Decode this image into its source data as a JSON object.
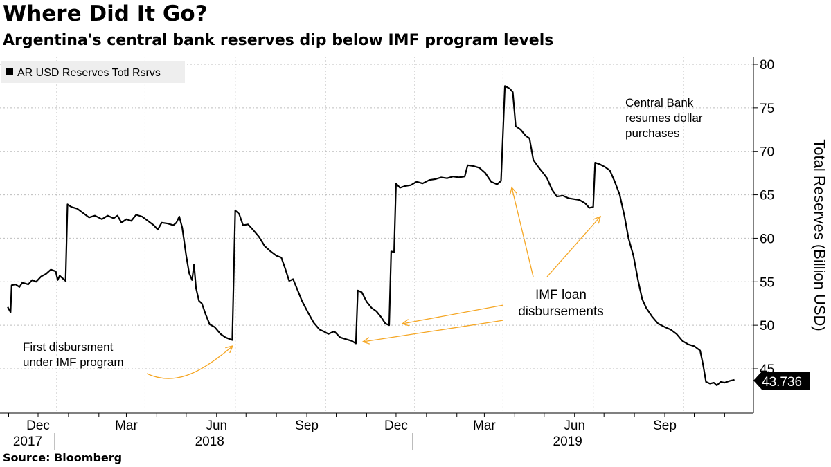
{
  "title": "Where Did It Go?",
  "subtitle": "Argentina's central bank reserves dip below IMF program levels",
  "source": "Source:  Bloomberg",
  "colors": {
    "line": "#000000",
    "annotation": "#f5a623",
    "grid": "#bdbdbd",
    "legend_bg": "#eeeeee"
  },
  "chart_data": {
    "type": "line",
    "x_type": "date",
    "ylabel": "Total Reserves (Billion USD)",
    "ylim": [
      40,
      80
    ],
    "yticks": [
      45,
      50,
      55,
      60,
      65,
      70,
      75,
      80
    ],
    "y_axis_position": "right",
    "grid": true,
    "legend": {
      "position": "top-left",
      "entries": [
        "AR USD Reserves Totl Rsrvs"
      ]
    },
    "x_tick_labels": [
      {
        "label": "Dec",
        "date": "2017-12-01"
      },
      {
        "label": "Mar",
        "date": "2018-03-01"
      },
      {
        "label": "Jun",
        "date": "2018-06-01"
      },
      {
        "label": "Sep",
        "date": "2018-09-01"
      },
      {
        "label": "Dec",
        "date": "2018-12-01"
      },
      {
        "label": "Mar",
        "date": "2019-03-01"
      },
      {
        "label": "Jun",
        "date": "2019-06-01"
      },
      {
        "label": "Sep",
        "date": "2019-09-01"
      }
    ],
    "year_labels": [
      {
        "label": "2017",
        "date": "2017-12-01"
      },
      {
        "label": "2018",
        "date": "2018-06-01"
      },
      {
        "label": "2019",
        "date": "2019-06-01"
      }
    ],
    "last_value_label": "43.736",
    "series": [
      {
        "name": "AR USD Reserves Totl Rsrvs",
        "points": [
          [
            "2017-10-31",
            52.1
          ],
          [
            "2017-11-03",
            51.5
          ],
          [
            "2017-11-04",
            54.6
          ],
          [
            "2017-11-08",
            54.7
          ],
          [
            "2017-11-12",
            54.4
          ],
          [
            "2017-11-15",
            54.9
          ],
          [
            "2017-11-21",
            54.7
          ],
          [
            "2017-11-25",
            55.2
          ],
          [
            "2017-11-29",
            55.0
          ],
          [
            "2017-12-04",
            55.6
          ],
          [
            "2017-12-09",
            55.9
          ],
          [
            "2017-12-14",
            56.4
          ],
          [
            "2017-12-19",
            56.2
          ],
          [
            "2017-12-21",
            55.2
          ],
          [
            "2017-12-23",
            55.7
          ],
          [
            "2017-12-29",
            55.1
          ],
          [
            "2017-12-31",
            63.9
          ],
          [
            "2018-01-04",
            63.6
          ],
          [
            "2018-01-10",
            63.4
          ],
          [
            "2018-01-16",
            62.9
          ],
          [
            "2018-01-22",
            62.4
          ],
          [
            "2018-01-28",
            62.6
          ],
          [
            "2018-02-04",
            62.2
          ],
          [
            "2018-02-10",
            62.6
          ],
          [
            "2018-02-16",
            62.3
          ],
          [
            "2018-02-20",
            62.6
          ],
          [
            "2018-02-24",
            61.8
          ],
          [
            "2018-03-01",
            62.2
          ],
          [
            "2018-03-06",
            62.0
          ],
          [
            "2018-03-11",
            62.7
          ],
          [
            "2018-03-17",
            62.5
          ],
          [
            "2018-03-23",
            62.0
          ],
          [
            "2018-03-29",
            61.5
          ],
          [
            "2018-04-02",
            61.0
          ],
          [
            "2018-04-06",
            61.8
          ],
          [
            "2018-04-12",
            61.7
          ],
          [
            "2018-04-18",
            61.5
          ],
          [
            "2018-04-21",
            61.8
          ],
          [
            "2018-04-24",
            62.5
          ],
          [
            "2018-04-27",
            61.2
          ],
          [
            "2018-05-01",
            58.0
          ],
          [
            "2018-05-04",
            56.0
          ],
          [
            "2018-05-07",
            55.2
          ],
          [
            "2018-05-09",
            57.0
          ],
          [
            "2018-05-11",
            54.3
          ],
          [
            "2018-05-14",
            52.8
          ],
          [
            "2018-05-17",
            52.5
          ],
          [
            "2018-05-21",
            51.2
          ],
          [
            "2018-05-25",
            50.1
          ],
          [
            "2018-05-30",
            49.8
          ],
          [
            "2018-06-05",
            49.0
          ],
          [
            "2018-06-10",
            48.6
          ],
          [
            "2018-06-17",
            48.3
          ],
          [
            "2018-06-20",
            63.2
          ],
          [
            "2018-06-24",
            62.8
          ],
          [
            "2018-06-28",
            61.5
          ],
          [
            "2018-07-03",
            61.6
          ],
          [
            "2018-07-08",
            61.0
          ],
          [
            "2018-07-14",
            60.2
          ],
          [
            "2018-07-20",
            59.1
          ],
          [
            "2018-07-26",
            58.5
          ],
          [
            "2018-08-01",
            58.0
          ],
          [
            "2018-08-06",
            57.8
          ],
          [
            "2018-08-10",
            56.5
          ],
          [
            "2018-08-14",
            55.1
          ],
          [
            "2018-08-18",
            55.3
          ],
          [
            "2018-08-22",
            54.2
          ],
          [
            "2018-08-27",
            52.8
          ],
          [
            "2018-09-02",
            51.5
          ],
          [
            "2018-09-08",
            50.3
          ],
          [
            "2018-09-14",
            49.5
          ],
          [
            "2018-09-18",
            49.3
          ],
          [
            "2018-09-23",
            49.0
          ],
          [
            "2018-09-29",
            49.3
          ],
          [
            "2018-10-05",
            48.6
          ],
          [
            "2018-10-11",
            48.4
          ],
          [
            "2018-10-17",
            48.2
          ],
          [
            "2018-10-21",
            47.9
          ],
          [
            "2018-10-23",
            54.0
          ],
          [
            "2018-10-27",
            53.8
          ],
          [
            "2018-11-01",
            52.7
          ],
          [
            "2018-11-06",
            52.0
          ],
          [
            "2018-11-11",
            51.6
          ],
          [
            "2018-11-16",
            50.9
          ],
          [
            "2018-11-20",
            50.2
          ],
          [
            "2018-11-24",
            50.0
          ],
          [
            "2018-11-26",
            58.5
          ],
          [
            "2018-11-29",
            58.4
          ],
          [
            "2018-12-01",
            66.3
          ],
          [
            "2018-12-05",
            65.8
          ],
          [
            "2018-12-10",
            66.0
          ],
          [
            "2018-12-16",
            66.1
          ],
          [
            "2018-12-22",
            66.5
          ],
          [
            "2018-12-28",
            66.3
          ],
          [
            "2019-01-04",
            66.7
          ],
          [
            "2019-01-10",
            66.8
          ],
          [
            "2019-01-16",
            67.0
          ],
          [
            "2019-01-22",
            66.9
          ],
          [
            "2019-01-28",
            67.1
          ],
          [
            "2019-02-03",
            67.0
          ],
          [
            "2019-02-09",
            67.1
          ],
          [
            "2019-02-12",
            68.4
          ],
          [
            "2019-02-18",
            68.3
          ],
          [
            "2019-02-24",
            68.1
          ],
          [
            "2019-03-02",
            67.5
          ],
          [
            "2019-03-08",
            66.5
          ],
          [
            "2019-03-14",
            66.2
          ],
          [
            "2019-03-18",
            66.6
          ],
          [
            "2019-03-22",
            77.5
          ],
          [
            "2019-03-27",
            77.2
          ],
          [
            "2019-03-30",
            76.8
          ],
          [
            "2019-04-02",
            72.9
          ],
          [
            "2019-04-07",
            72.5
          ],
          [
            "2019-04-12",
            71.8
          ],
          [
            "2019-04-16",
            71.5
          ],
          [
            "2019-04-20",
            69.0
          ],
          [
            "2019-04-25",
            68.2
          ],
          [
            "2019-04-30",
            67.5
          ],
          [
            "2019-05-04",
            66.9
          ],
          [
            "2019-05-09",
            65.6
          ],
          [
            "2019-05-14",
            64.8
          ],
          [
            "2019-05-20",
            64.9
          ],
          [
            "2019-05-26",
            64.6
          ],
          [
            "2019-06-01",
            64.5
          ],
          [
            "2019-06-06",
            64.4
          ],
          [
            "2019-06-12",
            64.0
          ],
          [
            "2019-06-16",
            63.5
          ],
          [
            "2019-06-20",
            63.6
          ],
          [
            "2019-06-22",
            68.7
          ],
          [
            "2019-06-27",
            68.5
          ],
          [
            "2019-07-02",
            68.2
          ],
          [
            "2019-07-07",
            67.8
          ],
          [
            "2019-07-12",
            66.5
          ],
          [
            "2019-07-17",
            65.0
          ],
          [
            "2019-07-22",
            62.5
          ],
          [
            "2019-07-26",
            60.0
          ],
          [
            "2019-07-31",
            58.0
          ],
          [
            "2019-08-05",
            55.0
          ],
          [
            "2019-08-09",
            53.0
          ],
          [
            "2019-08-13",
            52.0
          ],
          [
            "2019-08-19",
            51.0
          ],
          [
            "2019-08-25",
            50.2
          ],
          [
            "2019-09-01",
            49.8
          ],
          [
            "2019-09-07",
            49.5
          ],
          [
            "2019-09-13",
            49.0
          ],
          [
            "2019-09-19",
            48.2
          ],
          [
            "2019-09-25",
            47.8
          ],
          [
            "2019-10-01",
            47.6
          ],
          [
            "2019-10-07",
            47.1
          ],
          [
            "2019-10-10",
            45.5
          ],
          [
            "2019-10-13",
            43.5
          ],
          [
            "2019-10-17",
            43.3
          ],
          [
            "2019-10-21",
            43.4
          ],
          [
            "2019-10-24",
            43.1
          ],
          [
            "2019-10-28",
            43.5
          ],
          [
            "2019-11-01",
            43.4
          ],
          [
            "2019-11-06",
            43.6
          ],
          [
            "2019-11-11",
            43.736
          ]
        ]
      }
    ],
    "annotations": [
      {
        "text_lines": [
          "Central Bank",
          "resumes dollar",
          "purchases"
        ]
      },
      {
        "text_lines": [
          "IMF loan",
          "disbursements"
        ]
      },
      {
        "text_lines": [
          "First disbursment",
          "under IMF program"
        ]
      }
    ]
  }
}
